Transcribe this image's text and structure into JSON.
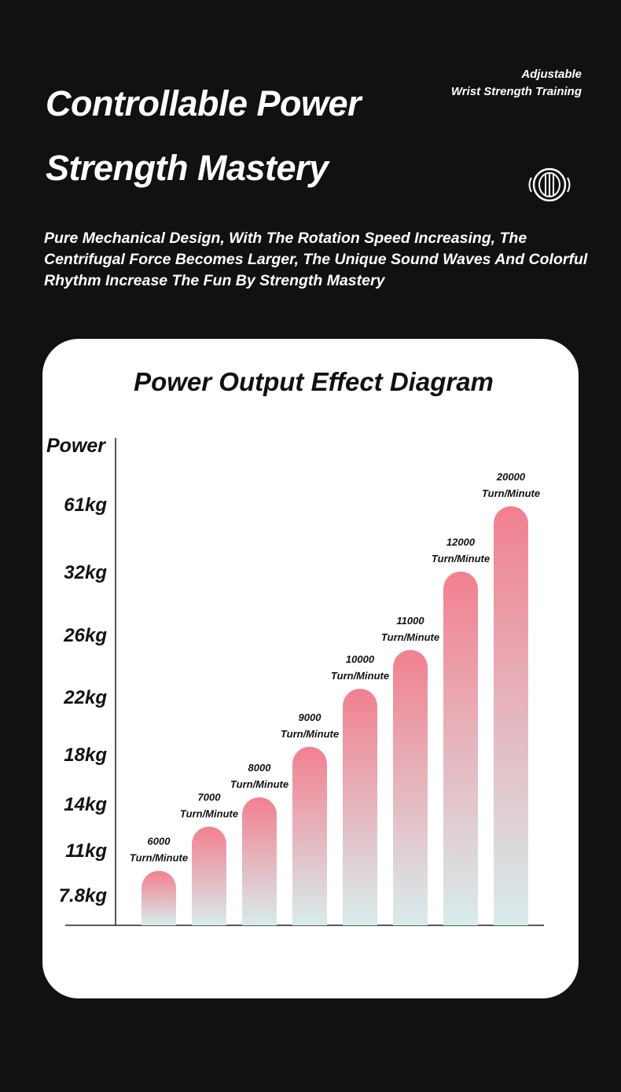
{
  "header": {
    "title_line1": "Controllable Power",
    "title_line2": "Strength Mastery",
    "tag_line1": "Adjustable",
    "tag_line2": "Wrist Strength Training",
    "icon": "rotating-grip-icon",
    "description": "Pure Mechanical Design, With The Rotation Speed Increasing, The Centrifugal Force Becomes Larger, The Unique Sound Waves And Colorful Rhythm Increase The Fun By Strength Mastery"
  },
  "chart_data": {
    "type": "bar",
    "title": "Power Output Effect Diagram",
    "ylabel": "Power",
    "y_ticks": [
      "7.8kg",
      "11kg",
      "14kg",
      "18kg",
      "22kg",
      "26kg",
      "32kg",
      "61kg"
    ],
    "y_tick_values": [
      7.8,
      11,
      14,
      18,
      22,
      26,
      32,
      61
    ],
    "categories": [
      "6000",
      "7000",
      "8000",
      "9000",
      "10000",
      "11000",
      "12000",
      "20000"
    ],
    "category_unit": "Turn/Minute",
    "values": [
      9.5,
      12.5,
      14.5,
      18.5,
      22.5,
      25,
      32,
      60
    ],
    "bar_color_top": "#f2808f",
    "bar_color_bottom": "#d8ecec",
    "grid": false
  }
}
